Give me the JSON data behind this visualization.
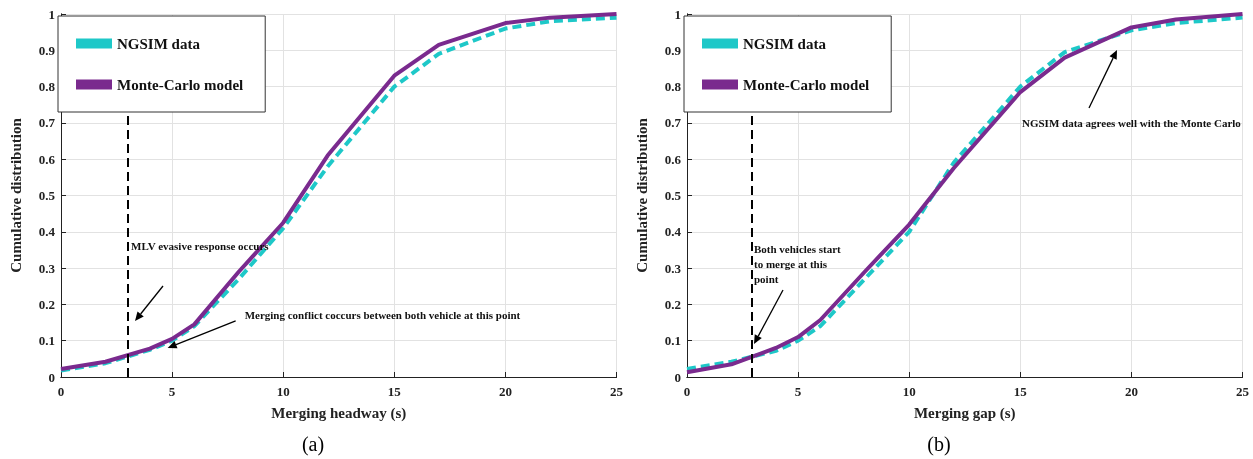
{
  "chart_data": [
    {
      "type": "line",
      "title": "(a)",
      "xlabel": "Merging headway (s)",
      "ylabel": "Cumulative distribution",
      "x": [
        0,
        2,
        4,
        5,
        6,
        8,
        10,
        12,
        15,
        17,
        20,
        22,
        25
      ],
      "series": [
        {
          "name": "NGSIM data",
          "color": "#1ec8c8",
          "line_style": "dashed",
          "values": [
            0.018,
            0.038,
            0.075,
            0.1,
            0.14,
            0.27,
            0.41,
            0.58,
            0.8,
            0.89,
            0.96,
            0.98,
            0.99
          ]
        },
        {
          "name": "Monte-Carlo model",
          "color": "#7a2a8e",
          "line_style": "solid",
          "values": [
            0.022,
            0.042,
            0.078,
            0.105,
            0.145,
            0.29,
            0.425,
            0.61,
            0.83,
            0.915,
            0.975,
            0.99,
            1.0
          ]
        }
      ],
      "xlim": [
        0,
        25
      ],
      "xticks": [
        0,
        5,
        10,
        15,
        20,
        25
      ],
      "ylim": [
        0,
        1
      ],
      "yticks": [
        0,
        0.1,
        0.2,
        0.3,
        0.4,
        0.5,
        0.6,
        0.7,
        0.8,
        0.9,
        1
      ],
      "grid": true,
      "legend": "top left",
      "marker": "none",
      "ref_lines": [
        {
          "axis": "x",
          "value": 3,
          "color": "#000000",
          "line_style": "dashed"
        }
      ],
      "annotations": [
        "MLV evasive response occurs",
        {
          "text": "Merging conflict coccurs between both vehicle at this point",
          "x": 4.8,
          "y": 0.08
        }
      ]
    },
    {
      "type": "line",
      "title": "(b)",
      "xlabel": "Merging gap (s)",
      "ylabel": "Cumulative distribution",
      "x": [
        0,
        2,
        4,
        5,
        6,
        8,
        10,
        12,
        15,
        17,
        20,
        22,
        25
      ],
      "series": [
        {
          "name": "NGSIM data",
          "color": "#1ec8c8",
          "line_style": "dashed",
          "values": [
            0.022,
            0.042,
            0.072,
            0.1,
            0.14,
            0.27,
            0.4,
            0.59,
            0.8,
            0.895,
            0.955,
            0.975,
            0.99
          ]
        },
        {
          "name": "Monte-Carlo model",
          "color": "#7a2a8e",
          "line_style": "solid",
          "values": [
            0.013,
            0.035,
            0.08,
            0.11,
            0.157,
            0.29,
            0.42,
            0.575,
            0.785,
            0.88,
            0.963,
            0.985,
            1.0
          ]
        }
      ],
      "xlim": [
        0,
        25
      ],
      "xticks": [
        0,
        5,
        10,
        15,
        20,
        25
      ],
      "ylim": [
        0,
        1
      ],
      "yticks": [
        0,
        0.1,
        0.2,
        0.3,
        0.4,
        0.5,
        0.6,
        0.7,
        0.8,
        0.9,
        1
      ],
      "grid": true,
      "legend": "top left",
      "marker": "none",
      "ref_lines": [
        {
          "axis": "x",
          "value": 2.9,
          "color": "#000000",
          "line_style": "dashed"
        }
      ],
      "annotations": [
        "Both vehicles start to merge at this point",
        "NGSIM data agrees well with the Monte Carlo"
      ]
    }
  ]
}
